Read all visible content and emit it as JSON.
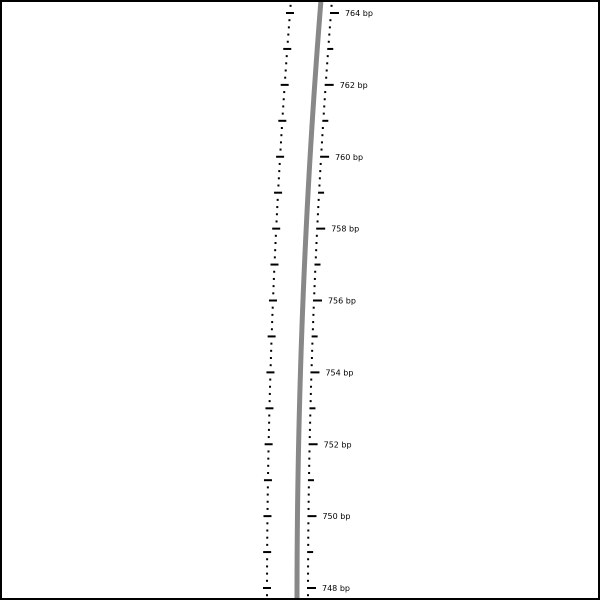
{
  "map": {
    "backbone_color": "#888888",
    "tick_color": "#000000",
    "labels": [
      {
        "bp": 764,
        "text": "764 bp"
      },
      {
        "bp": 762,
        "text": "762 bp"
      },
      {
        "bp": 760,
        "text": "760 bp"
      },
      {
        "bp": 758,
        "text": "758 bp"
      },
      {
        "bp": 756,
        "text": "756 bp"
      },
      {
        "bp": 754,
        "text": "754 bp"
      },
      {
        "bp": 752,
        "text": "752 bp"
      },
      {
        "bp": 750,
        "text": "750 bp"
      },
      {
        "bp": 748,
        "text": "748 bp"
      }
    ],
    "label_interval_bp": 2,
    "minor_tick_interval_bp": 0.2,
    "range_bp": [
      747.7,
      764.3
    ]
  }
}
